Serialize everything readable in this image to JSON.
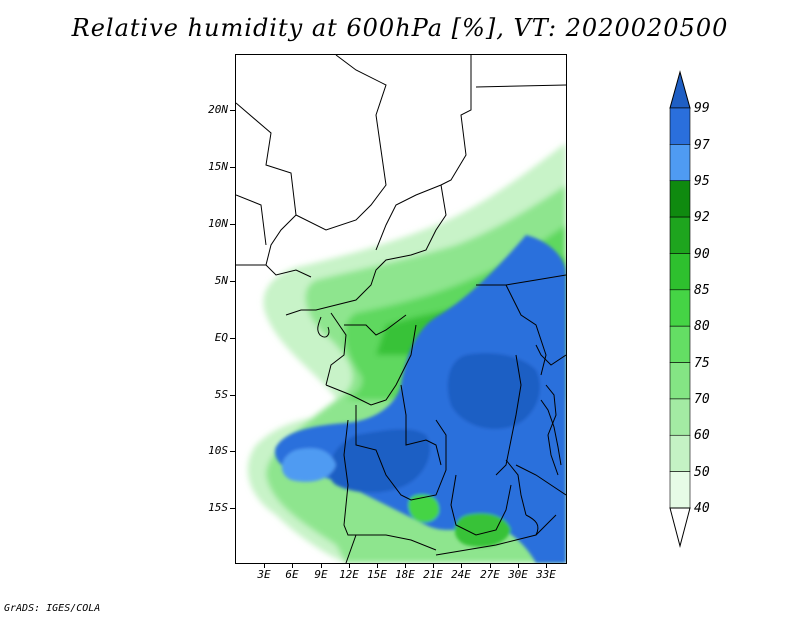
{
  "title": "Relative humidity at 600hPa [%], VT: 2020020500",
  "credit": "GrADS: IGES/COLA",
  "map": {
    "variable": "Relative humidity",
    "level": "600hPa",
    "units": "%",
    "valid_time": "2020020500",
    "region": "Central Africa",
    "lat_labels": [
      "20N",
      "15N",
      "10N",
      "5N",
      "EQ",
      "5S",
      "10S",
      "15S"
    ],
    "lon_labels": [
      "3E",
      "6E",
      "9E",
      "12E",
      "15E",
      "18E",
      "21E",
      "24E",
      "27E",
      "30E",
      "33E"
    ]
  },
  "colorbar": {
    "levels": [
      "40",
      "50",
      "60",
      "70",
      "75",
      "80",
      "85",
      "90",
      "92",
      "95",
      "97",
      "99"
    ],
    "colors": [
      "#ffffff",
      "#e6fbe6",
      "#c4f2c4",
      "#a3eba3",
      "#84e584",
      "#64de64",
      "#45d445",
      "#2ec02e",
      "#1ea51e",
      "#0f8a0f",
      "#4f9bf2",
      "#2a6fdc",
      "#1f5fc4"
    ]
  }
}
